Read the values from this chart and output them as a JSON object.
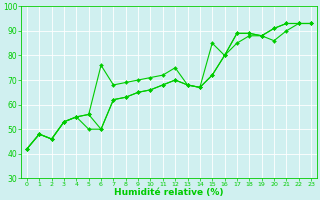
{
  "title": "",
  "xlabel": "Humidité relative (%)",
  "ylabel": "",
  "bg_color": "#d0f0f0",
  "grid_color": "#ffffff",
  "line_color": "#00cc00",
  "marker_color": "#00cc00",
  "xlim": [
    -0.5,
    23.5
  ],
  "ylim": [
    30,
    100
  ],
  "xticks": [
    0,
    1,
    2,
    3,
    4,
    5,
    6,
    7,
    8,
    9,
    10,
    11,
    12,
    13,
    14,
    15,
    16,
    17,
    18,
    19,
    20,
    21,
    22,
    23
  ],
  "yticks": [
    30,
    40,
    50,
    60,
    70,
    80,
    90,
    100
  ],
  "series1": [
    42,
    48,
    46,
    53,
    55,
    56,
    76,
    68,
    69,
    70,
    71,
    72,
    75,
    68,
    67,
    85,
    80,
    89,
    89,
    88,
    91,
    93,
    93,
    93
  ],
  "series2": [
    42,
    48,
    46,
    53,
    55,
    56,
    50,
    62,
    63,
    65,
    66,
    68,
    70,
    68,
    67,
    72,
    80,
    89,
    89,
    88,
    91,
    93,
    93,
    93
  ],
  "series3": [
    42,
    48,
    46,
    53,
    55,
    50,
    50,
    62,
    63,
    65,
    66,
    68,
    70,
    68,
    67,
    72,
    80,
    85,
    88,
    88,
    86,
    90,
    93,
    93
  ],
  "xlabel_fontsize": 6.5,
  "xtick_fontsize": 4.5,
  "ytick_fontsize": 5.5,
  "linewidth": 0.8,
  "markersize": 2.0
}
